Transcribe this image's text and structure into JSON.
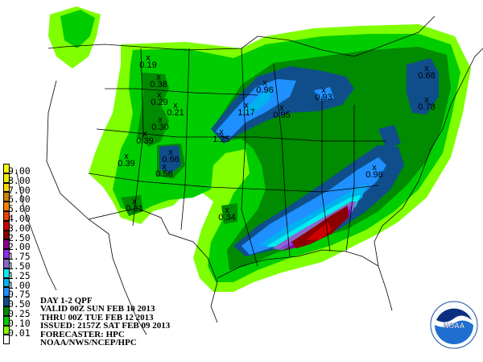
{
  "map": {
    "title_block": {
      "line1": "DAY 1-2 QPF",
      "line2": "VALID 00Z SUN FEB 10 2013",
      "line3": "THRU 00Z TUE FEB 12 2013",
      "line4": "ISSUED: 2157Z SAT FEB 09 2013",
      "line5": "FORECASTER: HPC",
      "line6": "NOAA/NWS/NCEP/HPC"
    },
    "legend": [
      {
        "label": "9.00",
        "color": "#ffff00"
      },
      {
        "label": "8.00",
        "color": "#eeee00"
      },
      {
        "label": "7.00",
        "color": "#ffd700"
      },
      {
        "label": "6.00",
        "color": "#cd8500"
      },
      {
        "label": "5.00",
        "color": "#ff7f00"
      },
      {
        "label": "4.00",
        "color": "#ee4000"
      },
      {
        "label": "3.00",
        "color": "#cd0000"
      },
      {
        "label": "2.50",
        "color": "#8b0000"
      },
      {
        "label": "2.00",
        "color": "#8b008b"
      },
      {
        "label": "1.75",
        "color": "#912cee"
      },
      {
        "label": "1.50",
        "color": "#8968cd"
      },
      {
        "label": "1.25",
        "color": "#00eeee"
      },
      {
        "label": "1.00",
        "color": "#00b2ee"
      },
      {
        "label": "0.75",
        "color": "#1e90ff"
      },
      {
        "label": "0.50",
        "color": "#104e8b"
      },
      {
        "label": "0.25",
        "color": "#008b00"
      },
      {
        "label": "0.10",
        "color": "#00cd00"
      },
      {
        "label": "0.01",
        "color": "#7fff00"
      },
      {
        "label": "",
        "color": "#ffffff"
      }
    ],
    "point_maxima": [
      "0.19",
      "0.38",
      "0.29",
      "0.21",
      "0.30",
      "0.39",
      "0.39",
      "0.66",
      "0.56",
      "0.31",
      "0.34",
      "1.25",
      "1.17",
      "0.96",
      "0.95",
      "0.93",
      "0.68",
      "0.78",
      "0.98"
    ],
    "marker_symbol": "x",
    "logo_text": "NOAA"
  }
}
